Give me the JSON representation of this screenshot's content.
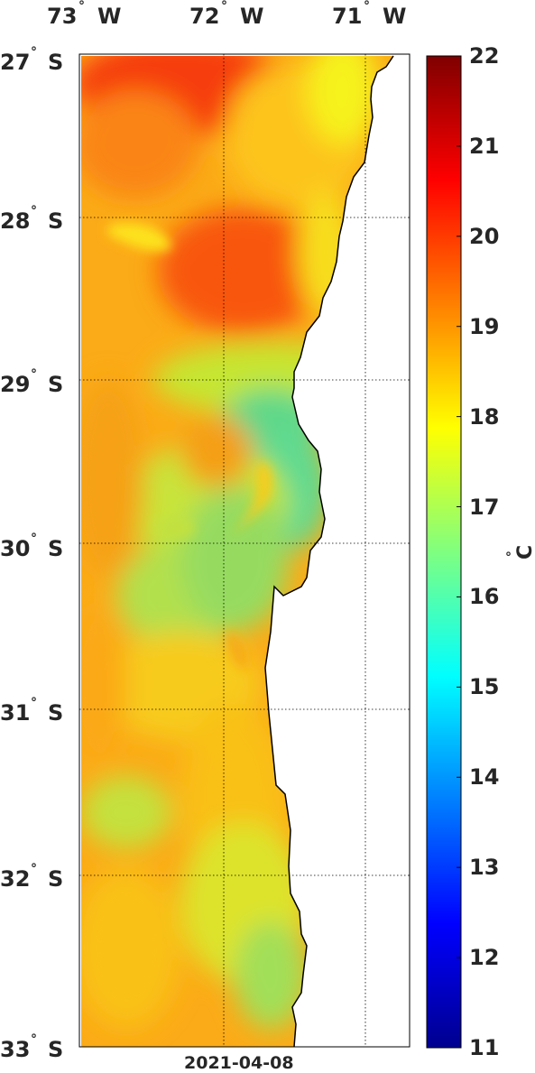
{
  "map": {
    "date": "2021-04-08",
    "lon_labels": [
      {
        "value": "73",
        "hem": "W"
      },
      {
        "value": "72",
        "hem": "W"
      },
      {
        "value": "71",
        "hem": "W"
      }
    ],
    "lat_labels": [
      {
        "value": "27",
        "hem": "S"
      },
      {
        "value": "28",
        "hem": "S"
      },
      {
        "value": "29",
        "hem": "S"
      },
      {
        "value": "30",
        "hem": "S"
      },
      {
        "value": "31",
        "hem": "S"
      },
      {
        "value": "32",
        "hem": "S"
      },
      {
        "value": "33",
        "hem": "S"
      }
    ],
    "degree_symbol": "°",
    "land_color": "#ffffff"
  },
  "colorbar": {
    "min": 11,
    "max": 22,
    "ticks": [
      "22",
      "21",
      "20",
      "19",
      "18",
      "17",
      "16",
      "15",
      "14",
      "13",
      "12",
      "11"
    ],
    "unit_degree": "°",
    "unit_letter": "C",
    "colormap": "jet"
  }
}
